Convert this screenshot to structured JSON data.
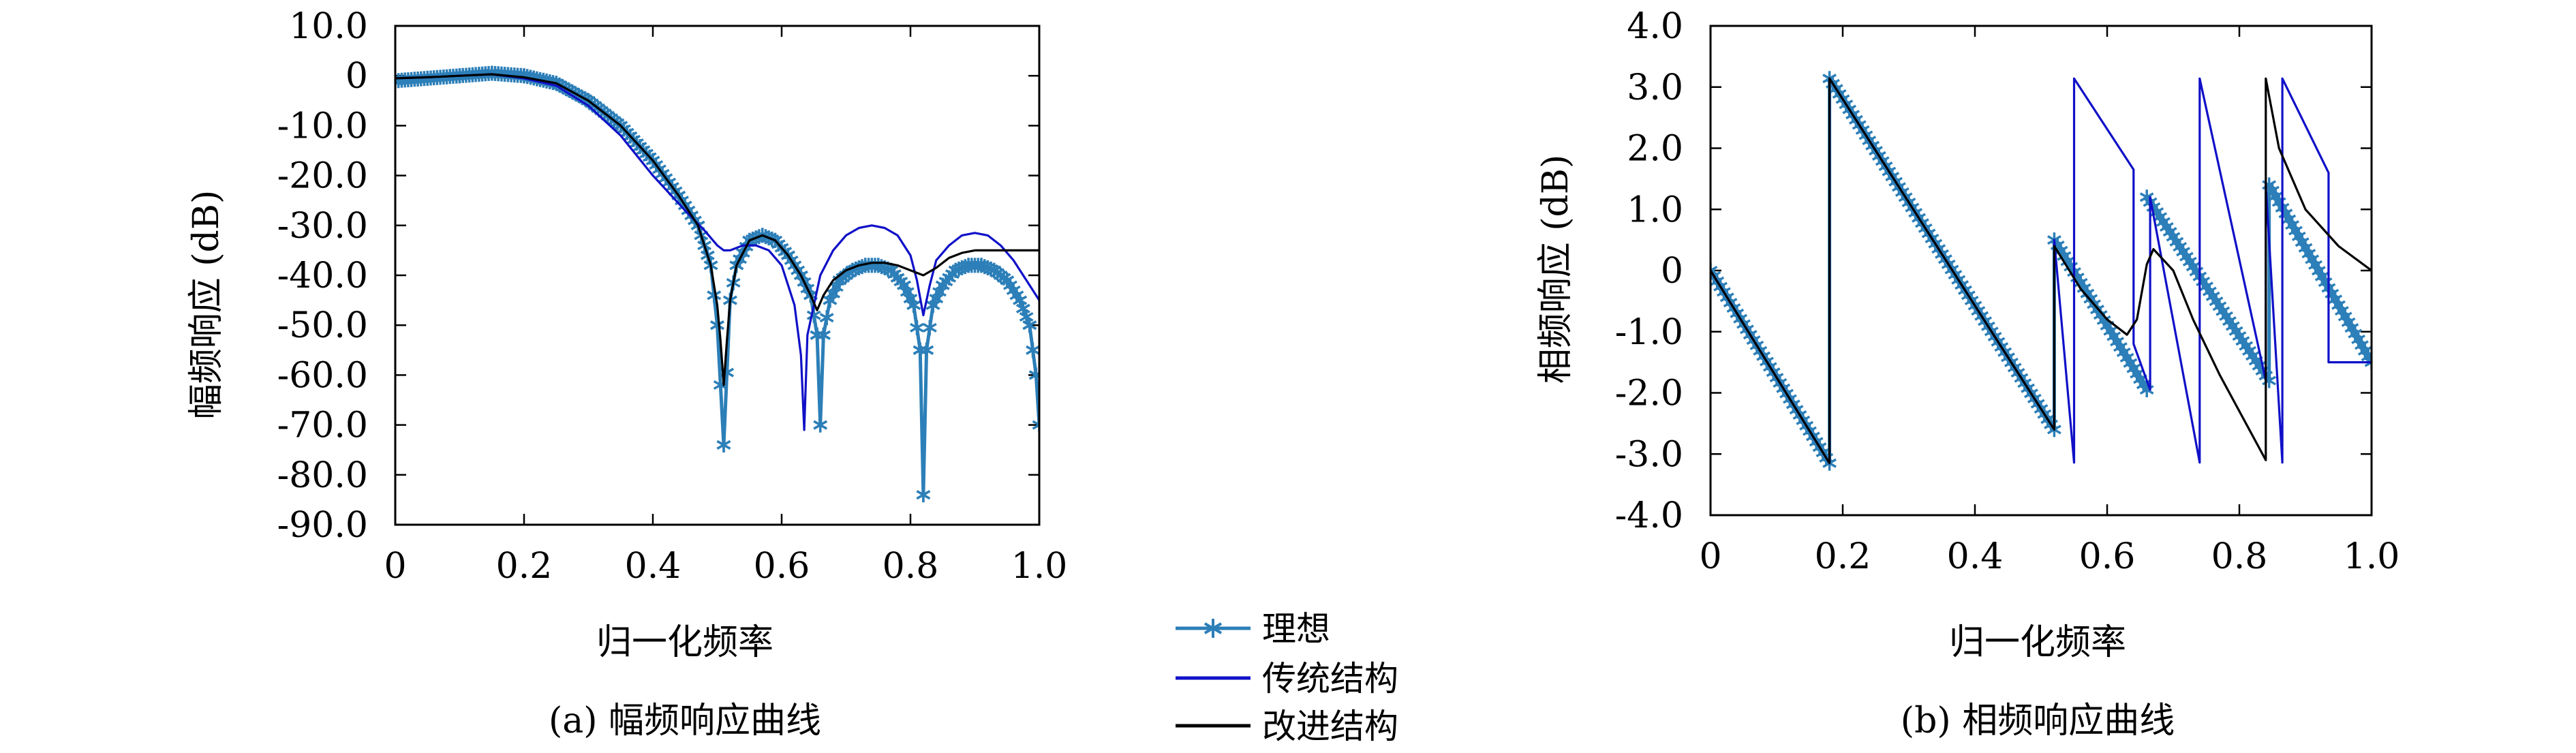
{
  "chart_data": [
    {
      "type": "line",
      "caption": "(a) 幅频响应曲线",
      "xlabel": "归一化频率",
      "ylabel": "幅频响应 (dB)",
      "xlim": [
        0,
        1
      ],
      "ylim": [
        -90,
        10
      ],
      "xticks": [
        0,
        0.2,
        0.4,
        0.6,
        0.8,
        1.0
      ],
      "xtick_labels": [
        "0",
        "0.2",
        "0.4",
        "0.6",
        "0.8",
        "1.0"
      ],
      "yticks": [
        10,
        0,
        -10,
        -20,
        -30,
        -40,
        -50,
        -60,
        -70,
        -80,
        -90
      ],
      "ytick_labels": [
        "10.0",
        "0",
        "-10.0",
        "-20.0",
        "-30.0",
        "-40.0",
        "-50.0",
        "-60.0",
        "-70.0",
        "-80.0",
        "-90.0"
      ],
      "grid": false,
      "series": [
        {
          "name": "理想",
          "color": "#2c7fb8",
          "marker": "star",
          "x": [
            0,
            0.05,
            0.1,
            0.15,
            0.2,
            0.25,
            0.3,
            0.35,
            0.4,
            0.44,
            0.47,
            0.49,
            0.5,
            0.51,
            0.52,
            0.53,
            0.55,
            0.57,
            0.59,
            0.61,
            0.63,
            0.645,
            0.655,
            0.66,
            0.665,
            0.675,
            0.69,
            0.71,
            0.73,
            0.75,
            0.77,
            0.79,
            0.805,
            0.815,
            0.82,
            0.825,
            0.835,
            0.85,
            0.87,
            0.89,
            0.91,
            0.93,
            0.95,
            0.97,
            0.985,
            0.995,
            1.0
          ],
          "y": [
            -1,
            -0.5,
            0,
            0.5,
            0,
            -1.5,
            -5,
            -10,
            -17,
            -24,
            -30,
            -38,
            -50,
            -74,
            -45,
            -38,
            -33,
            -32,
            -33,
            -36,
            -40,
            -44,
            -52,
            -70,
            -52,
            -45,
            -41,
            -39,
            -38,
            -38,
            -39,
            -42,
            -46,
            -55,
            -84,
            -55,
            -46,
            -42,
            -39,
            -38,
            -38,
            -39,
            -41,
            -45,
            -50,
            -60,
            -70
          ]
        },
        {
          "name": "传统结构",
          "color": "#1010c8",
          "marker": "none",
          "x": [
            0,
            0.05,
            0.1,
            0.15,
            0.2,
            0.25,
            0.3,
            0.35,
            0.4,
            0.45,
            0.48,
            0.5,
            0.51,
            0.52,
            0.54,
            0.56,
            0.58,
            0.6,
            0.62,
            0.63,
            0.635,
            0.64,
            0.66,
            0.68,
            0.7,
            0.72,
            0.74,
            0.76,
            0.78,
            0.8,
            0.81,
            0.82,
            0.83,
            0.84,
            0.86,
            0.88,
            0.9,
            0.92,
            0.94,
            0.96,
            0.98,
            1.0
          ],
          "y": [
            -0.5,
            -0.3,
            0,
            0.3,
            -0.5,
            -2,
            -6,
            -12,
            -20,
            -27,
            -31,
            -34,
            -35,
            -35,
            -34,
            -34,
            -35,
            -38,
            -46,
            -56,
            -71,
            -52,
            -40,
            -35,
            -32,
            -30.5,
            -30,
            -30.5,
            -32,
            -36,
            -41,
            -48,
            -42,
            -37,
            -34,
            -32,
            -31.5,
            -32,
            -34,
            -37,
            -41,
            -45
          ]
        },
        {
          "name": "改进结构",
          "color": "#000000",
          "marker": "none",
          "x": [
            0,
            0.05,
            0.1,
            0.15,
            0.2,
            0.25,
            0.3,
            0.35,
            0.4,
            0.44,
            0.47,
            0.49,
            0.5,
            0.505,
            0.51,
            0.515,
            0.52,
            0.53,
            0.55,
            0.57,
            0.59,
            0.61,
            0.63,
            0.645,
            0.655,
            0.665,
            0.68,
            0.7,
            0.72,
            0.74,
            0.76,
            0.78,
            0.8,
            0.82,
            0.84,
            0.86,
            0.88,
            0.9,
            0.93,
            0.96,
            1.0
          ],
          "y": [
            -0.5,
            -0.3,
            0,
            0.3,
            -0.3,
            -1.5,
            -5,
            -10,
            -17,
            -24,
            -30,
            -38,
            -46,
            -53,
            -62,
            -53,
            -45,
            -38,
            -33,
            -32,
            -33,
            -36,
            -40,
            -44,
            -47,
            -44,
            -41,
            -39,
            -38,
            -37.5,
            -37.5,
            -38,
            -39,
            -40,
            -38.5,
            -36.5,
            -35.5,
            -35,
            -35,
            -35,
            -35
          ]
        }
      ]
    },
    {
      "type": "line",
      "caption": "(b) 相频响应曲线",
      "xlabel": "归一化频率",
      "ylabel": "相频响应 (dB)",
      "xlim": [
        0,
        1
      ],
      "ylim": [
        -4,
        4
      ],
      "xticks": [
        0,
        0.2,
        0.4,
        0.6,
        0.8,
        1.0
      ],
      "xtick_labels": [
        "0",
        "0.2",
        "0.4",
        "0.6",
        "0.8",
        "1.0"
      ],
      "yticks": [
        4,
        3,
        2,
        1,
        0,
        -1,
        -2,
        -3,
        -4
      ],
      "ytick_labels": [
        "4.0",
        "3.0",
        "2.0",
        "1.0",
        "0",
        "-1.0",
        "-2.0",
        "-3.0",
        "-4.0"
      ],
      "grid": false,
      "series": [
        {
          "name": "理想",
          "color": "#2c7fb8",
          "marker": "star",
          "x": [
            0,
            0.18,
            0.18,
            0.52,
            0.52,
            0.66,
            0.66,
            0.66,
            0.845,
            0.845,
            1.0
          ],
          "y": [
            0,
            -3.15,
            3.14,
            -2.6,
            0.5,
            -1.95,
            null,
            1.2,
            -1.8,
            1.4,
            -1.5
          ]
        },
        {
          "name": "传统结构",
          "color": "#1010c8",
          "marker": "none",
          "x": [
            0,
            0.18,
            0.18,
            0.52,
            0.52,
            0.55,
            0.55,
            0.64,
            0.64,
            0.665,
            0.665,
            0.74,
            0.74,
            0.84,
            0.84,
            0.865,
            0.865,
            0.935,
            0.935,
            1.0
          ],
          "y": [
            0,
            -3.15,
            3.14,
            -2.6,
            0.5,
            -3.14,
            3.14,
            1.65,
            -1.2,
            -1.95,
            1.2,
            -3.14,
            3.14,
            -1.8,
            1.4,
            -3.14,
            3.14,
            1.6,
            -1.5,
            -1.5
          ]
        },
        {
          "name": "改进结构",
          "color": "#000000",
          "marker": "none",
          "x": [
            0,
            0.18,
            0.18,
            0.52,
            0.52,
            0.56,
            0.6,
            0.63,
            0.645,
            0.66,
            0.67,
            0.7,
            0.73,
            0.77,
            0.81,
            0.84,
            0.84,
            0.86,
            0.9,
            0.95,
            1.0
          ],
          "y": [
            0,
            -3.15,
            3.14,
            -2.6,
            0.4,
            -0.3,
            -0.8,
            -1.05,
            -0.8,
            0.1,
            0.35,
            0.0,
            -0.8,
            -1.7,
            -2.5,
            -3.1,
            3.14,
            2.0,
            1.0,
            0.4,
            0.0
          ]
        }
      ]
    }
  ],
  "legend": {
    "items": [
      {
        "label": "理想",
        "color": "#2c7fb8",
        "marker": "star"
      },
      {
        "label": "传统结构",
        "color": "#1010c8",
        "marker": "none"
      },
      {
        "label": "改进结构",
        "color": "#000000",
        "marker": "none"
      }
    ]
  }
}
